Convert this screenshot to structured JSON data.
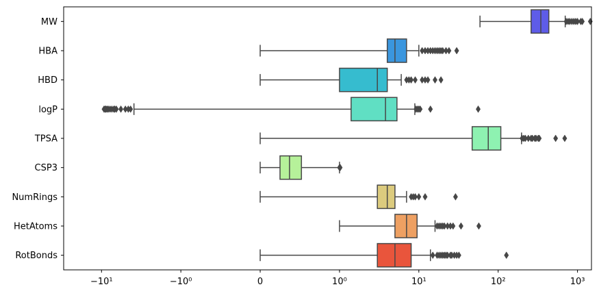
{
  "chart_data": {
    "type": "boxplot",
    "orientation": "horizontal",
    "x_scale": "symlog",
    "x_linthresh": 1,
    "xlim": [
      -30,
      1500
    ],
    "x_ticks": [
      {
        "value": -10,
        "label": "−10¹"
      },
      {
        "value": -1,
        "label": "−10⁰"
      },
      {
        "value": 0,
        "label": "0"
      },
      {
        "value": 1,
        "label": "10⁰"
      },
      {
        "value": 10,
        "label": "10¹"
      },
      {
        "value": 100,
        "label": "10²"
      },
      {
        "value": 1000,
        "label": "10³"
      }
    ],
    "grid": false,
    "legend": "none",
    "categories": [
      "MW",
      "HBA",
      "HBD",
      "logP",
      "TPSA",
      "CSP3",
      "NumRings",
      "HetAtoms",
      "RotBonds"
    ],
    "colors": [
      "#5e5ce8",
      "#3a96de",
      "#36bccf",
      "#60dfc3",
      "#8ef2b1",
      "#b6f19a",
      "#dccb7e",
      "#eea062",
      "#e9553c"
    ],
    "boxes": [
      {
        "whisker_low": 59,
        "q1": 260,
        "median": 345,
        "q3": 435,
        "whisker_high": 700,
        "fliers": [
          720,
          760,
          800,
          850,
          900,
          950,
          1000,
          1100,
          1150,
          1450
        ]
      },
      {
        "whisker_low": 0,
        "q1": 4,
        "median": 5,
        "q3": 7,
        "whisker_high": 10,
        "fliers": [
          11,
          12,
          13,
          14,
          15,
          16,
          17,
          18,
          19,
          20,
          22,
          24,
          30
        ]
      },
      {
        "whisker_low": 0,
        "q1": 1,
        "median": 3,
        "q3": 4,
        "whisker_high": 6,
        "fliers": [
          7,
          7.5,
          8,
          9,
          11,
          12,
          13,
          16,
          19
        ]
      },
      {
        "whisker_low": -3.9,
        "q1": 1.4,
        "median": 3.8,
        "q3": 5.3,
        "whisker_high": 8.9,
        "fliers": [
          -9.3,
          -9,
          -8.8,
          -8.5,
          -8.2,
          -7.8,
          -7.4,
          -7,
          -6.8,
          -6.5,
          -5.7,
          -5,
          -4.6,
          -4.3,
          9.2,
          9.6,
          10,
          10.4,
          14,
          56
        ]
      },
      {
        "whisker_low": 0,
        "q1": 47,
        "median": 75,
        "q3": 108,
        "whisker_high": 197,
        "fliers": [
          200,
          210,
          220,
          240,
          260,
          270,
          290,
          300,
          320,
          330,
          530,
          690
        ]
      },
      {
        "whisker_low": 0,
        "q1": 0.25,
        "median": 0.37,
        "q3": 0.52,
        "whisker_high": 1.0,
        "fliers": [
          1.0,
          1.02
        ]
      },
      {
        "whisker_low": 0,
        "q1": 3,
        "median": 4,
        "q3": 5,
        "whisker_high": 7,
        "fliers": [
          8,
          8.5,
          9,
          10,
          12,
          29
        ]
      },
      {
        "whisker_low": 1,
        "q1": 5,
        "median": 7,
        "q3": 9.5,
        "whisker_high": 16,
        "fliers": [
          17,
          18,
          19,
          20,
          21,
          23,
          25,
          27,
          34,
          57
        ]
      },
      {
        "whisker_low": 0,
        "q1": 3,
        "median": 5,
        "q3": 8,
        "whisker_high": 14,
        "fliers": [
          15,
          17,
          18,
          19,
          20,
          21,
          22,
          23,
          25,
          26,
          28,
          30,
          32,
          127
        ]
      }
    ]
  }
}
